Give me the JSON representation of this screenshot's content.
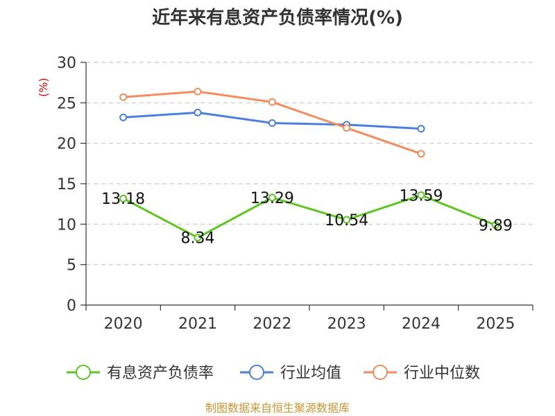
{
  "chart_data": {
    "type": "line",
    "title": "近年来有息资产负债率情况(%)",
    "ylabel": "(%)",
    "xlabel": "",
    "categories": [
      "2020",
      "2021",
      "2022",
      "2023",
      "2024",
      "2025"
    ],
    "ylim": [
      0,
      30
    ],
    "yticks": [
      0,
      5,
      10,
      15,
      20,
      25,
      30
    ],
    "grid": true,
    "legend_position": "bottom",
    "series": [
      {
        "name": "有息资产负债率",
        "color": "#5cc620",
        "values": [
          13.18,
          8.34,
          13.29,
          10.54,
          13.59,
          9.89
        ],
        "data_labels": [
          "13.18",
          "8.34",
          "13.29",
          "10.54",
          "13.59",
          "9.89"
        ]
      },
      {
        "name": "行业均值",
        "color": "#4a7fdc",
        "values": [
          23.2,
          23.8,
          22.5,
          22.3,
          21.8,
          null
        ]
      },
      {
        "name": "行业中位数",
        "color": "#f58c5c",
        "values": [
          25.7,
          26.4,
          25.1,
          21.9,
          18.7,
          null
        ]
      }
    ],
    "source": "制图数据来自恒生聚源数据库"
  }
}
